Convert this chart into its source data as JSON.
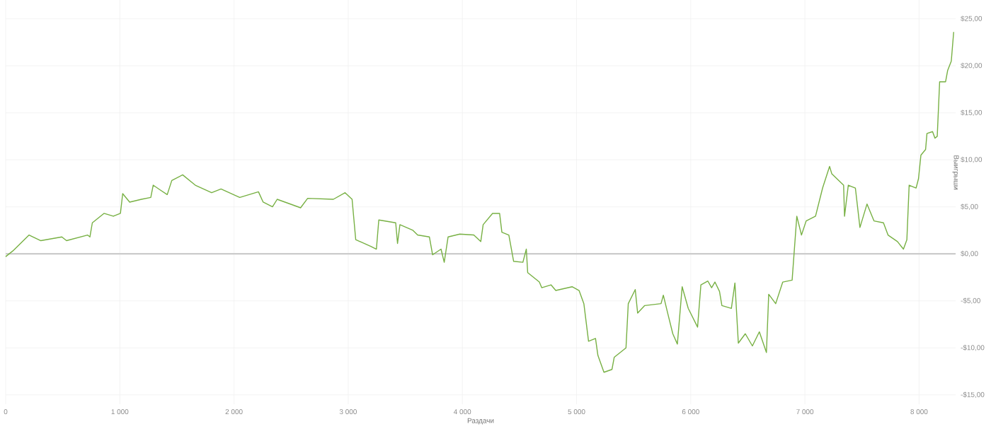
{
  "chart_data": {
    "type": "line",
    "xlabel": "Раздачи",
    "ylabel": "Выигрыши",
    "xlim": [
      0,
      8320
    ],
    "ylim": [
      -16,
      27
    ],
    "xticks": [
      {
        "value": 0,
        "label": "0"
      },
      {
        "value": 1000,
        "label": "1 000"
      },
      {
        "value": 2000,
        "label": "2 000"
      },
      {
        "value": 3000,
        "label": "3 000"
      },
      {
        "value": 4000,
        "label": "4 000"
      },
      {
        "value": 5000,
        "label": "5 000"
      },
      {
        "value": 6000,
        "label": "6 000"
      },
      {
        "value": 7000,
        "label": "7 000"
      },
      {
        "value": 8000,
        "label": "8 000"
      }
    ],
    "yticks": [
      {
        "value": -15,
        "label": "-$15,00"
      },
      {
        "value": -10,
        "label": "-$10,00"
      },
      {
        "value": -5,
        "label": "-$5,00"
      },
      {
        "value": 0,
        "label": "$0,00"
      },
      {
        "value": 5,
        "label": "$5,00"
      },
      {
        "value": 10,
        "label": "$10,00"
      },
      {
        "value": 15,
        "label": "$15,00"
      },
      {
        "value": 20,
        "label": "$20,00"
      },
      {
        "value": 25,
        "label": "$25,00"
      }
    ],
    "grid": true,
    "marker": "none",
    "line_style": "solid",
    "ref_lines": [
      {
        "axis": "y",
        "value": 0,
        "color": "#cccccc"
      }
    ],
    "x": [
      0,
      62,
      205,
      308,
      492,
      533,
      717,
      738,
      759,
      861,
      943,
      1005,
      1025,
      1086,
      1189,
      1271,
      1292,
      1353,
      1415,
      1455,
      1550,
      1661,
      1804,
      1886,
      2050,
      2214,
      2255,
      2337,
      2378,
      2583,
      2645,
      2870,
      2973,
      3034,
      3066,
      3198,
      3247,
      3268,
      3416,
      3432,
      3453,
      3567,
      3608,
      3711,
      3739,
      3813,
      3841,
      3875,
      3977,
      4100,
      4161,
      4182,
      4264,
      4326,
      4346,
      4407,
      4449,
      4530,
      4560,
      4572,
      4674,
      4695,
      4776,
      4818,
      4961,
      5022,
      5064,
      5105,
      5166,
      5187,
      5240,
      5310,
      5330,
      5433,
      5453,
      5514,
      5535,
      5597,
      5740,
      5760,
      5802,
      5843,
      5883,
      5925,
      5978,
      6060,
      6089,
      6150,
      6183,
      6212,
      6252,
      6273,
      6356,
      6387,
      6417,
      6478,
      6540,
      6601,
      6663,
      6683,
      6744,
      6806,
      6888,
      6929,
      6970,
      7011,
      7093,
      7155,
      7216,
      7236,
      7339,
      7347,
      7380,
      7442,
      7482,
      7544,
      7605,
      7688,
      7728,
      7811,
      7863,
      7893,
      7913,
      7974,
      7995,
      8016,
      8057,
      8069,
      8118,
      8139,
      8159,
      8180,
      8232,
      8250,
      8282,
      8303
    ],
    "series": [
      {
        "color": "#77b043",
        "values": [
          -0.3,
          0.3,
          2.0,
          1.4,
          1.8,
          1.4,
          2.0,
          1.8,
          3.3,
          4.3,
          4.0,
          4.3,
          6.4,
          5.5,
          5.8,
          6.0,
          7.3,
          6.8,
          6.3,
          7.8,
          8.4,
          7.3,
          6.5,
          6.9,
          6.0,
          6.6,
          5.5,
          5.0,
          5.8,
          4.9,
          5.9,
          5.8,
          6.5,
          5.8,
          1.5,
          0.8,
          0.5,
          3.6,
          3.3,
          1.1,
          3.1,
          2.5,
          2.0,
          1.8,
          -0.1,
          0.5,
          -0.9,
          1.8,
          2.1,
          2.0,
          1.3,
          3.1,
          4.3,
          4.3,
          2.3,
          2.0,
          -0.8,
          -0.9,
          0.5,
          -2.0,
          -3.0,
          -3.6,
          -3.3,
          -3.9,
          -3.5,
          -3.9,
          -5.3,
          -9.3,
          -9.0,
          -10.8,
          -12.6,
          -12.3,
          -11.0,
          -10.0,
          -5.3,
          -3.8,
          -6.3,
          -5.5,
          -5.3,
          -4.4,
          -6.5,
          -8.5,
          -9.6,
          -3.5,
          -5.8,
          -7.8,
          -3.3,
          -2.9,
          -3.6,
          -3.0,
          -4.0,
          -5.5,
          -5.8,
          -3.1,
          -9.5,
          -8.5,
          -9.8,
          -8.3,
          -10.5,
          -4.3,
          -5.3,
          -3.0,
          -2.8,
          4.0,
          2.0,
          3.5,
          4.0,
          7.0,
          9.3,
          8.5,
          7.3,
          4.0,
          7.3,
          7.0,
          2.8,
          5.3,
          3.5,
          3.3,
          2.0,
          1.3,
          0.5,
          1.5,
          7.3,
          7.0,
          8.0,
          10.5,
          11.1,
          12.8,
          13.0,
          12.3,
          12.5,
          18.3,
          18.3,
          19.5,
          20.5,
          23.6
        ]
      }
    ]
  }
}
